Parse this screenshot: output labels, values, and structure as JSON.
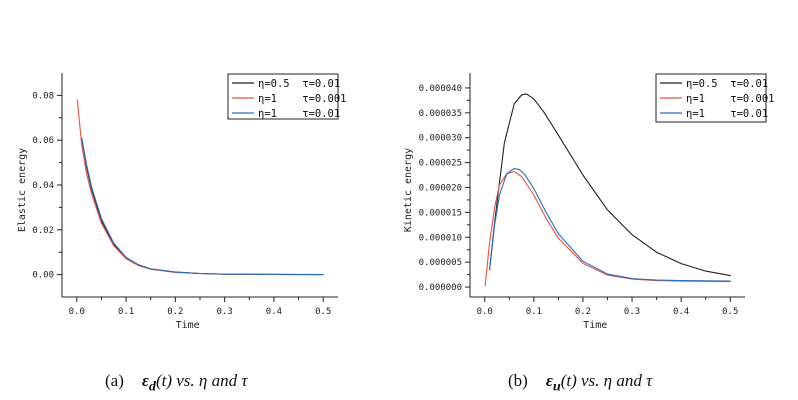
{
  "chart_data": [
    {
      "type": "line",
      "panel": "(a)",
      "ylabel": "Elastic energy",
      "xlabel": "Time",
      "xlim": [
        -0.03,
        0.53
      ],
      "ylim": [
        -0.01,
        0.09
      ],
      "xticks": [
        "0.0",
        "0.1",
        "0.2",
        "0.3",
        "0.4",
        "0.5"
      ],
      "xtick_values": [
        0,
        0.1,
        0.2,
        0.3,
        0.4,
        0.5
      ],
      "yticks": [
        "0.00",
        "0.02",
        "0.04",
        "0.06",
        "0.08"
      ],
      "ytick_values": [
        0,
        0.02,
        0.04,
        0.06,
        0.08
      ],
      "legend_position": "top-right",
      "series": [
        {
          "name": "η=0.5  τ=0.01",
          "color": "#222222",
          "x": [
            0.01,
            0.02,
            0.03,
            0.05,
            0.075,
            0.1,
            0.125,
            0.15,
            0.2,
            0.25,
            0.3,
            0.4,
            0.5
          ],
          "y": [
            0.061,
            0.048,
            0.038,
            0.024,
            0.0135,
            0.0073,
            0.0042,
            0.0025,
            0.0011,
            0.0005,
            0.0002,
            0.0001,
            0.0
          ]
        },
        {
          "name": "η=1    τ=0.001",
          "color": "#e5533f",
          "x": [
            0.001,
            0.01,
            0.02,
            0.03,
            0.05,
            0.075,
            0.1,
            0.125,
            0.15,
            0.2,
            0.25,
            0.3,
            0.4,
            0.5
          ],
          "y": [
            0.078,
            0.058,
            0.045,
            0.036,
            0.023,
            0.0128,
            0.0071,
            0.004,
            0.0024,
            0.001,
            0.0005,
            0.0002,
            0.0001,
            0.0
          ]
        },
        {
          "name": "η=1    τ=0.01",
          "color": "#2a6db8",
          "x": [
            0.01,
            0.02,
            0.03,
            0.05,
            0.075,
            0.1,
            0.125,
            0.15,
            0.2,
            0.25,
            0.3,
            0.4,
            0.5
          ],
          "y": [
            0.061,
            0.049,
            0.039,
            0.025,
            0.014,
            0.0077,
            0.0044,
            0.0026,
            0.0011,
            0.0005,
            0.0002,
            0.0001,
            0.0
          ]
        }
      ]
    },
    {
      "type": "line",
      "panel": "(b)",
      "ylabel": "Kinetic energy",
      "xlabel": "Time",
      "xlim": [
        -0.03,
        0.53
      ],
      "ylim": [
        -2e-06,
        4.3e-05
      ],
      "xticks": [
        "0.0",
        "0.1",
        "0.2",
        "0.3",
        "0.4",
        "0.5"
      ],
      "xtick_values": [
        0,
        0.1,
        0.2,
        0.3,
        0.4,
        0.5
      ],
      "yticks": [
        "0.000000",
        "0.000005",
        "0.000010",
        "0.000015",
        "0.000020",
        "0.000025",
        "0.000030",
        "0.000035",
        "0.000040"
      ],
      "ytick_values": [
        0,
        5e-06,
        1e-05,
        1.5e-05,
        2e-05,
        2.5e-05,
        3e-05,
        3.5e-05,
        4e-05
      ],
      "legend_position": "top-right",
      "series": [
        {
          "name": "η=0.5  τ=0.01",
          "color": "#222222",
          "x": [
            0.01,
            0.02,
            0.04,
            0.06,
            0.075,
            0.085,
            0.1,
            0.12,
            0.15,
            0.2,
            0.25,
            0.3,
            0.35,
            0.4,
            0.45,
            0.5
          ],
          "y": [
            3.5e-06,
            1.3e-05,
            2.9e-05,
            3.68e-05,
            3.86e-05,
            3.88e-05,
            3.78e-05,
            3.52e-05,
            3.05e-05,
            2.25e-05,
            1.55e-05,
            1.05e-05,
            7e-06,
            4.7e-06,
            3.2e-06,
            2.3e-06
          ]
        },
        {
          "name": "η=1    τ=0.001",
          "color": "#e5533f",
          "x": [
            0.001,
            0.01,
            0.02,
            0.03,
            0.045,
            0.06,
            0.075,
            0.1,
            0.125,
            0.15,
            0.2,
            0.25,
            0.3,
            0.35,
            0.4,
            0.5
          ],
          "y": [
            3e-07,
            9e-06,
            1.6e-05,
            2.05e-05,
            2.28e-05,
            2.32e-05,
            2.22e-05,
            1.85e-05,
            1.38e-05,
            9.8e-06,
            4.8e-06,
            2.4e-06,
            1.6e-06,
            1.3e-06,
            1.2e-06,
            1.1e-06
          ]
        },
        {
          "name": "η=1    τ=0.01",
          "color": "#2a6db8",
          "x": [
            0.01,
            0.02,
            0.03,
            0.045,
            0.06,
            0.07,
            0.08,
            0.1,
            0.125,
            0.15,
            0.2,
            0.25,
            0.3,
            0.35,
            0.4,
            0.5
          ],
          "y": [
            3.5e-06,
            1.25e-05,
            1.85e-05,
            2.28e-05,
            2.38e-05,
            2.36e-05,
            2.28e-05,
            1.98e-05,
            1.5e-05,
            1.07e-05,
            5.2e-06,
            2.6e-06,
            1.7e-06,
            1.4e-06,
            1.3e-06,
            1.2e-06
          ]
        }
      ]
    }
  ],
  "captions": {
    "a": {
      "label": "(a)",
      "sym": "ε",
      "sub": "d",
      "arg": "(t)",
      "tail": "vs. η and τ"
    },
    "b": {
      "label": "(b)",
      "sym": "ε",
      "sub": "u",
      "arg": "(t)",
      "tail": "vs. η and τ"
    }
  }
}
